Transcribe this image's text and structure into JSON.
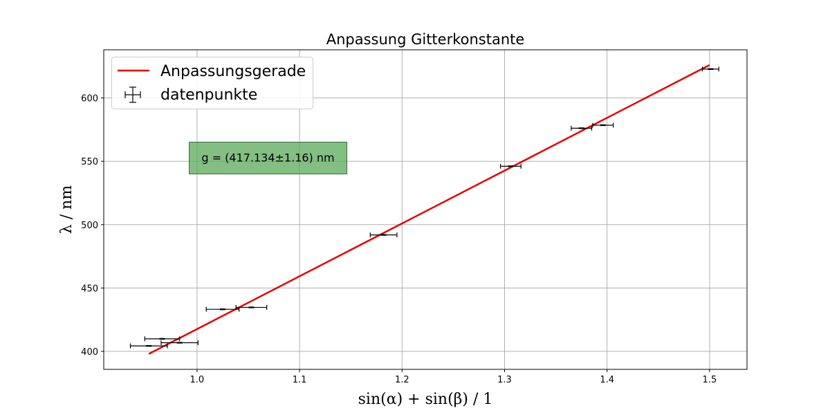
{
  "chart_data": {
    "type": "scatter",
    "title": "Anpassung Gitterkonstante",
    "xlabel": "sin(α) + sin(β) / 1",
    "ylabel": "λ / nm",
    "xlim": [
      0.909,
      1.5365
    ],
    "ylim": [
      385.8,
      638.0
    ],
    "xticks": [
      1.0,
      1.1,
      1.2,
      1.3,
      1.4,
      1.5
    ],
    "xtick_labels": [
      "1.0",
      "1.1",
      "1.2",
      "1.3",
      "1.4",
      "1.5"
    ],
    "yticks": [
      400,
      450,
      500,
      550,
      600
    ],
    "ytick_labels": [
      "400",
      "450",
      "500",
      "550",
      "600"
    ],
    "grid": true,
    "legend_position": "upper-left",
    "annotation": "g = (417.134±1.16) nm",
    "annotation_color": "#5aa85a",
    "series": [
      {
        "name": "Anpassungsgerade",
        "kind": "line",
        "color": "#e60000",
        "x": [
          0.953,
          1.5
        ],
        "y": [
          398.0,
          626.0
        ]
      },
      {
        "name": "datenpunkte",
        "kind": "errorbar",
        "color": "#000000",
        "points": [
          {
            "x": 0.953,
            "y": 404.3,
            "xerr": 0.018,
            "yerr": 0.3
          },
          {
            "x": 0.966,
            "y": 409.9,
            "xerr": 0.017,
            "yerr": 0.3
          },
          {
            "x": 0.983,
            "y": 406.8,
            "xerr": 0.018,
            "yerr": 0.3
          },
          {
            "x": 1.025,
            "y": 433.2,
            "xerr": 0.016,
            "yerr": 0.3
          },
          {
            "x": 1.053,
            "y": 434.7,
            "xerr": 0.015,
            "yerr": 0.3
          },
          {
            "x": 1.182,
            "y": 491.9,
            "xerr": 0.013,
            "yerr": 0.3
          },
          {
            "x": 1.306,
            "y": 546.1,
            "xerr": 0.01,
            "yerr": 0.3
          },
          {
            "x": 1.375,
            "y": 576.1,
            "xerr": 0.01,
            "yerr": 0.3
          },
          {
            "x": 1.396,
            "y": 578.5,
            "xerr": 0.01,
            "yerr": 0.3
          },
          {
            "x": 1.501,
            "y": 622.8,
            "xerr": 0.008,
            "yerr": 0.3
          }
        ]
      }
    ]
  }
}
